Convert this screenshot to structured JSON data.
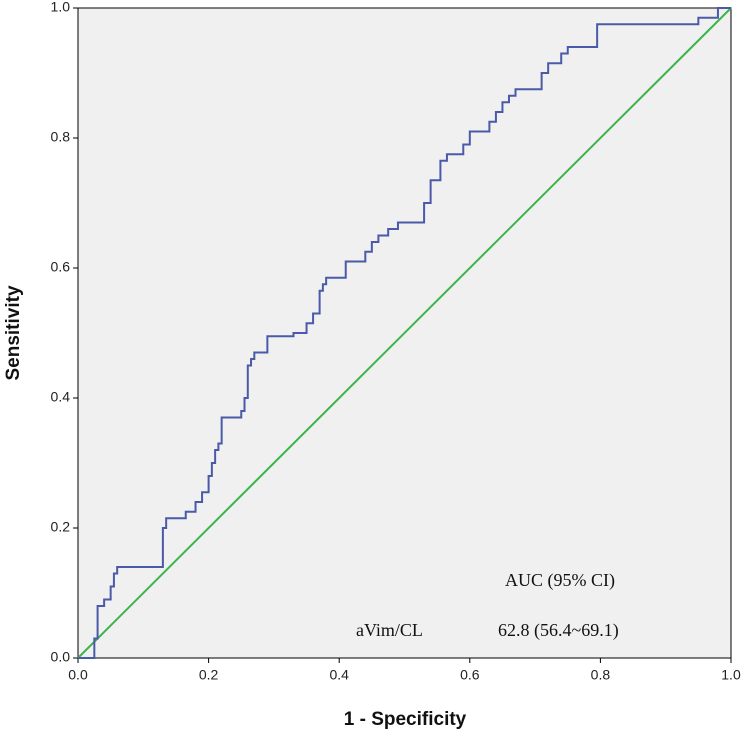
{
  "chart_data": {
    "type": "line",
    "xlabel": "1 - Specificity",
    "ylabel": "Sensitivity",
    "annotations": [
      "AUC (95% CI)",
      "aVim/CL",
      "62.8 (56.4~69.1)"
    ],
    "xlim": [
      0,
      1
    ],
    "ylim": [
      0,
      1
    ],
    "xticks": [
      {
        "value": 0,
        "label": "0.0"
      },
      0.2,
      0.4,
      0.6,
      0.8,
      {
        "value": 1,
        "label": "1.0"
      }
    ],
    "yticks": [
      {
        "value": 0,
        "label": "0.0"
      },
      0.2,
      0.4,
      0.6,
      0.8,
      {
        "value": 1,
        "label": "1.0"
      }
    ],
    "series": [
      {
        "color": "#4a5aa8",
        "x": [
          0,
          0.025,
          0.025,
          0.03,
          0.03,
          0.04,
          0.04,
          0.05,
          0.05,
          0.055,
          0.055,
          0.06,
          0.06,
          0.13,
          0.13,
          0.135,
          0.135,
          0.165,
          0.165,
          0.18,
          0.18,
          0.19,
          0.19,
          0.2,
          0.2,
          0.205,
          0.205,
          0.21,
          0.21,
          0.215,
          0.215,
          0.22,
          0.22,
          0.25,
          0.25,
          0.255,
          0.255,
          0.26,
          0.26,
          0.265,
          0.265,
          0.27,
          0.27,
          0.29,
          0.29,
          0.33,
          0.33,
          0.35,
          0.35,
          0.36,
          0.36,
          0.37,
          0.37,
          0.375,
          0.375,
          0.38,
          0.38,
          0.41,
          0.41,
          0.44,
          0.44,
          0.45,
          0.45,
          0.46,
          0.46,
          0.475,
          0.475,
          0.49,
          0.49,
          0.53,
          0.53,
          0.54,
          0.54,
          0.555,
          0.555,
          0.565,
          0.565,
          0.59,
          0.59,
          0.6,
          0.6,
          0.63,
          0.63,
          0.64,
          0.64,
          0.65,
          0.65,
          0.66,
          0.66,
          0.67,
          0.67,
          0.71,
          0.71,
          0.72,
          0.72,
          0.74,
          0.74,
          0.75,
          0.75,
          0.795,
          0.795,
          0.95,
          0.95,
          0.98,
          0.98,
          1
        ],
        "values": [
          0,
          0,
          0.03,
          0.03,
          0.08,
          0.08,
          0.09,
          0.09,
          0.11,
          0.11,
          0.13,
          0.13,
          0.14,
          0.14,
          0.2,
          0.2,
          0.215,
          0.215,
          0.225,
          0.225,
          0.24,
          0.24,
          0.255,
          0.255,
          0.28,
          0.28,
          0.3,
          0.3,
          0.32,
          0.32,
          0.33,
          0.33,
          0.37,
          0.37,
          0.38,
          0.38,
          0.4,
          0.4,
          0.45,
          0.45,
          0.46,
          0.46,
          0.47,
          0.47,
          0.495,
          0.495,
          0.5,
          0.5,
          0.515,
          0.515,
          0.53,
          0.53,
          0.565,
          0.565,
          0.575,
          0.575,
          0.585,
          0.585,
          0.61,
          0.61,
          0.625,
          0.625,
          0.64,
          0.64,
          0.65,
          0.65,
          0.66,
          0.66,
          0.67,
          0.67,
          0.7,
          0.7,
          0.735,
          0.735,
          0.765,
          0.765,
          0.775,
          0.775,
          0.79,
          0.79,
          0.81,
          0.81,
          0.825,
          0.825,
          0.84,
          0.84,
          0.855,
          0.855,
          0.865,
          0.865,
          0.875,
          0.875,
          0.9,
          0.9,
          0.915,
          0.915,
          0.93,
          0.93,
          0.94,
          0.94,
          0.975,
          0.975,
          0.985,
          0.985,
          1,
          1
        ]
      },
      {
        "color": "#3cb44b",
        "x": [
          0,
          1
        ],
        "values": [
          0,
          1
        ]
      }
    ]
  }
}
